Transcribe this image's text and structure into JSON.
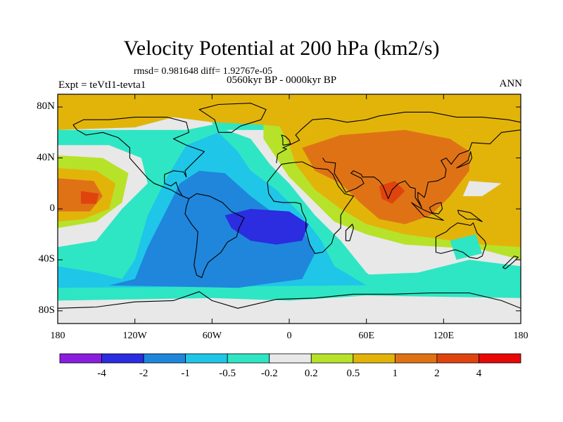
{
  "chart_data": {
    "type": "filled-contour-map",
    "title": "Velocity Potential at 200 hPa (km2/s)",
    "stats": "rmsd= 0.981648 diff= 1.92767e-05",
    "period": "0560kyr BP - 0000kyr BP",
    "experiment": "Expt = teVtI1-tevta1",
    "season": "ANN",
    "lat_ticks": [
      "80N",
      "40N",
      "0",
      "40S",
      "80S"
    ],
    "lat_values": [
      80,
      40,
      0,
      -40,
      -80
    ],
    "lon_ticks": [
      "180",
      "120W",
      "60W",
      "0",
      "60E",
      "120E",
      "180"
    ],
    "lon_values": [
      -180,
      -120,
      -60,
      0,
      60,
      120,
      180
    ],
    "xlim": [
      -180,
      180
    ],
    "ylim": [
      -90,
      90
    ],
    "colorbar": {
      "levels": [
        "-4",
        "-2",
        "-1",
        "-0.5",
        "-0.2",
        "0.2",
        "0.5",
        "1",
        "2",
        "4"
      ],
      "colors": [
        "#8a1ee0",
        "#2c2ce0",
        "#1f86dc",
        "#1fc6e8",
        "#2ee6c4",
        "#e8e8e8",
        "#b7e22a",
        "#e2b40a",
        "#e07216",
        "#e0440e",
        "#e80808"
      ]
    },
    "field_centers": [
      {
        "lon": -25,
        "lat": -12,
        "level": "-2 to -4",
        "description": "minimum over tropical Atlantic / Brazil"
      },
      {
        "lon": 80,
        "lat": 15,
        "level": "2 to 4",
        "description": "maximum over India / Asia"
      },
      {
        "lon": -152,
        "lat": 8,
        "level": "2 to 4",
        "description": "maximum over central Pacific"
      }
    ]
  }
}
